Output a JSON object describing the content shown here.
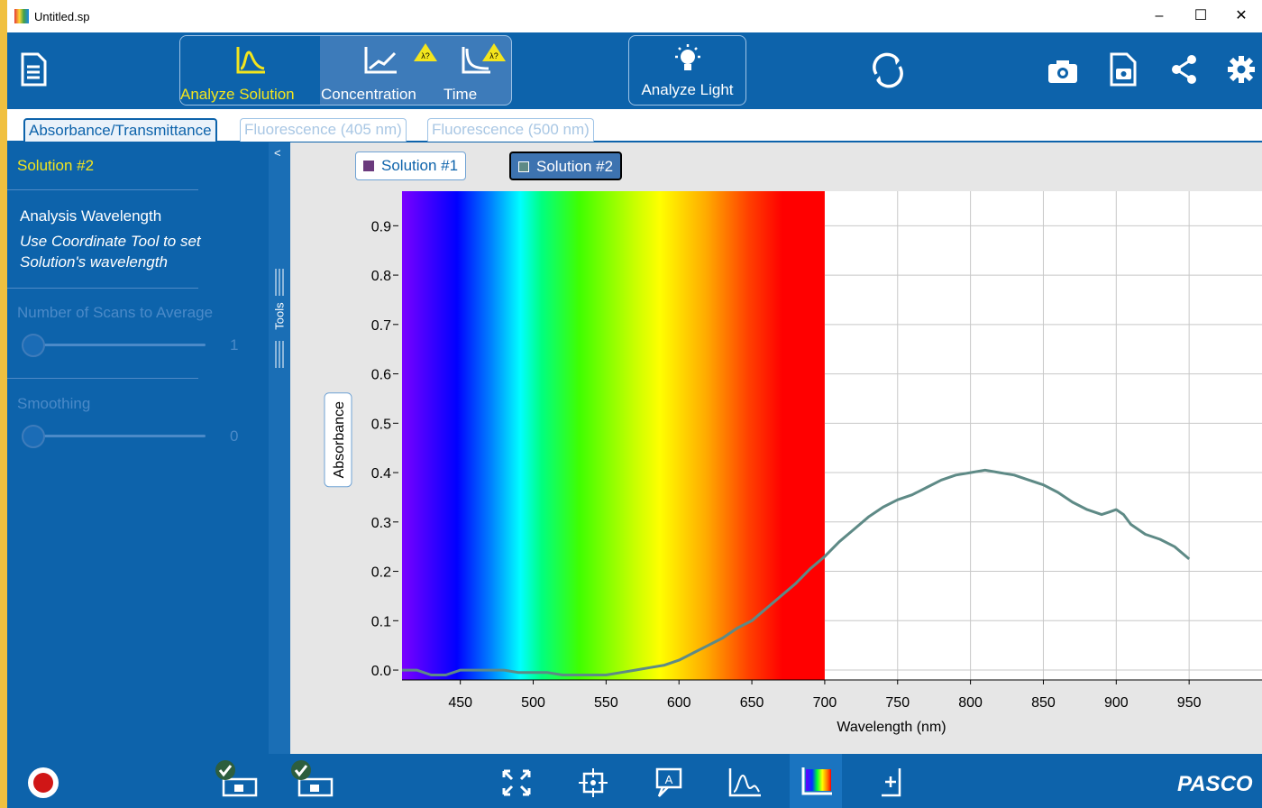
{
  "window": {
    "title": "Untitled.sp",
    "controls": {
      "minimize": "–",
      "maximize": "☐",
      "close": "✕"
    }
  },
  "toolbar": {
    "analyze_solution": "Analyze Solution",
    "concentration": "Concentration",
    "time": "Time",
    "analyze_light": "Analyze Light",
    "icons": [
      "file-icon",
      "analyze-solution-icon",
      "concentration-icon",
      "time-icon",
      "analyze-light-icon",
      "rotate-icon",
      "camera-icon",
      "snapshot-icon",
      "share-icon",
      "gear-icon"
    ]
  },
  "tabs": [
    {
      "label": "Absorbance/Transmittance",
      "active": true
    },
    {
      "label": "Fluorescence (405 nm)",
      "active": false
    },
    {
      "label": "Fluorescence (500 nm)",
      "active": false
    }
  ],
  "sidebar": {
    "collapse": "<",
    "title": "Solution #2",
    "analysis_heading": "Analysis Wavelength",
    "analysis_hint_line1": "Use Coordinate Tool to set",
    "analysis_hint_line2": "Solution's wavelength",
    "scans_label": "Number of Scans to Average",
    "scans_value": "1",
    "smoothing_label": "Smoothing",
    "smoothing_value": "0",
    "tools_label": "Tools"
  },
  "legend": [
    {
      "label": "Solution #1",
      "color": "#6b3a7d",
      "selected": false
    },
    {
      "label": "Solution #2",
      "color": "#5e8a86",
      "selected": true
    }
  ],
  "chart_data": {
    "type": "line",
    "xlabel": "Wavelength (nm)",
    "ylabel": "Absorbance",
    "xlim": [
      410,
      1000
    ],
    "ylim": [
      -0.02,
      0.97
    ],
    "x_ticks": [
      450,
      500,
      550,
      600,
      650,
      700,
      750,
      800,
      850,
      900,
      950
    ],
    "y_ticks": [
      0.0,
      0.1,
      0.2,
      0.3,
      0.4,
      0.5,
      0.6,
      0.7,
      0.8,
      0.9
    ],
    "y_tick_labels": [
      "0.0",
      "0.1",
      "0.2",
      "0.3",
      "0.4",
      "0.5",
      "0.6",
      "0.7",
      "0.8",
      "0.9"
    ],
    "grid": true,
    "visible_spectrum_band": [
      410,
      700
    ],
    "series": [
      {
        "name": "Solution #2",
        "color": "#5e8a86",
        "x": [
          410,
          420,
          430,
          440,
          450,
          460,
          470,
          480,
          490,
          500,
          510,
          520,
          530,
          540,
          550,
          560,
          570,
          580,
          590,
          600,
          610,
          620,
          630,
          640,
          650,
          660,
          670,
          680,
          690,
          700,
          710,
          720,
          730,
          740,
          750,
          760,
          770,
          780,
          790,
          800,
          810,
          820,
          830,
          840,
          850,
          860,
          870,
          880,
          890,
          895,
          900,
          905,
          910,
          920,
          930,
          940,
          950
        ],
        "y": [
          0.0,
          0.0,
          -0.01,
          -0.01,
          0.0,
          0.0,
          0.0,
          0.0,
          -0.005,
          -0.005,
          -0.005,
          -0.01,
          -0.01,
          -0.01,
          -0.01,
          -0.005,
          0.0,
          0.005,
          0.01,
          0.02,
          0.035,
          0.05,
          0.065,
          0.085,
          0.1,
          0.125,
          0.15,
          0.175,
          0.205,
          0.23,
          0.26,
          0.285,
          0.31,
          0.33,
          0.345,
          0.355,
          0.37,
          0.385,
          0.395,
          0.4,
          0.405,
          0.4,
          0.395,
          0.385,
          0.375,
          0.36,
          0.34,
          0.325,
          0.315,
          0.32,
          0.325,
          0.315,
          0.295,
          0.275,
          0.265,
          0.25,
          0.225
        ]
      }
    ]
  },
  "bottombar": {
    "brand": "PASCO",
    "icons": [
      "record-button",
      "sensor-1-connected-icon",
      "sensor-2-connected-icon",
      "scale-to-fit-icon",
      "coordinate-tool-icon",
      "annotation-icon",
      "peak-icon",
      "spectrum-icon",
      "add-coordinate-icon"
    ]
  }
}
